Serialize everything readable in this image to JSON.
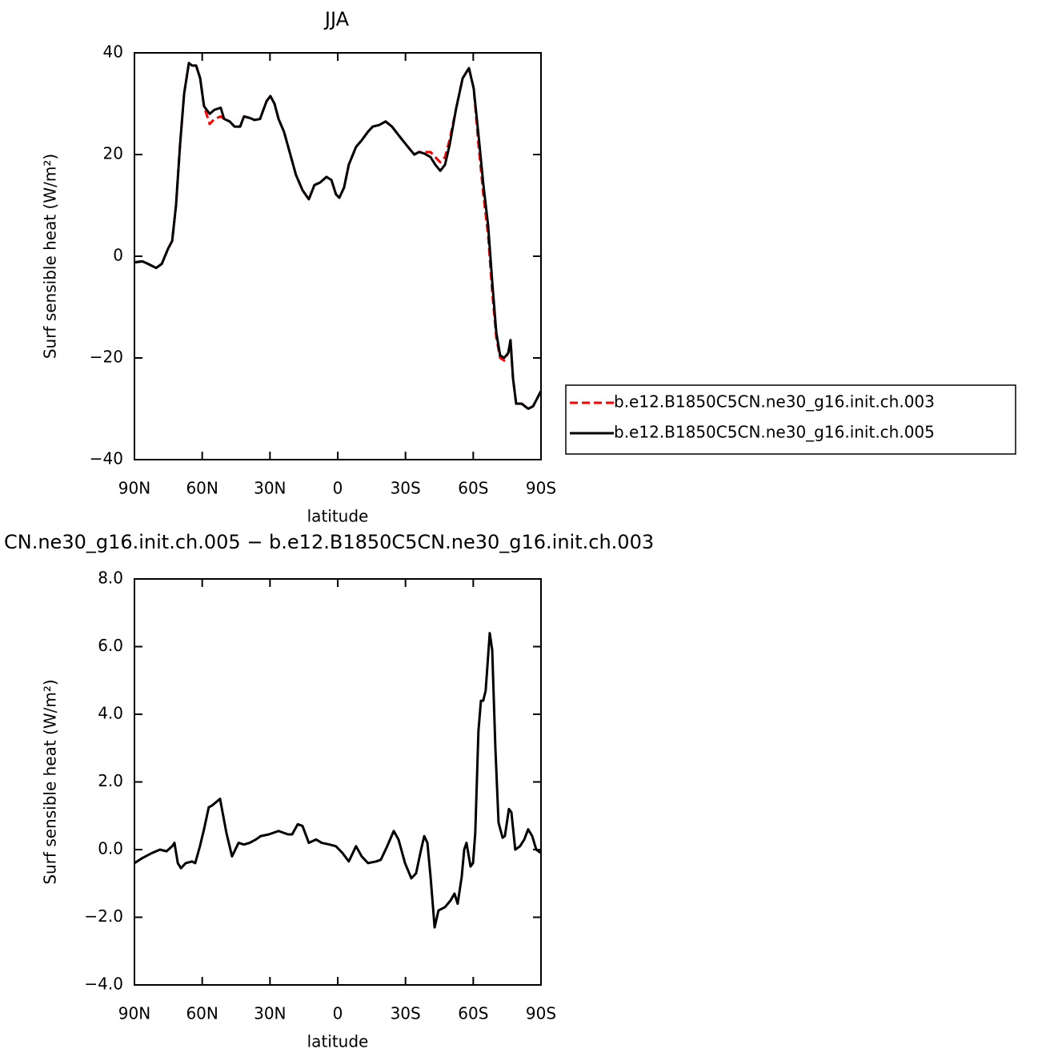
{
  "chart_data": [
    {
      "type": "line",
      "title": "JJA",
      "xlabel": "latitude",
      "ylabel": "Surf sensible heat (W/m²)",
      "xlim": [
        90,
        -90
      ],
      "xticks": [
        {
          "value": 90,
          "label": "90N"
        },
        {
          "value": 60,
          "label": "60N"
        },
        {
          "value": 30,
          "label": "30N"
        },
        0,
        {
          "value": -30,
          "label": "30S"
        },
        {
          "value": -60,
          "label": "60S"
        },
        {
          "value": -90,
          "label": "90S"
        }
      ],
      "ylim": [
        -40,
        40
      ],
      "yticks": [
        {
          "value": -40,
          "label": "−40"
        },
        {
          "value": -20,
          "label": "−20"
        },
        0,
        20,
        40
      ],
      "legend": "outside-right",
      "x": [
        90,
        86.5,
        84.0,
        80.4,
        77.9,
        75.1,
        73.3,
        71.6,
        69.8,
        68.0,
        65.9,
        64.5,
        62.7,
        60.9,
        59.2,
        56.7,
        54.6,
        51.8,
        50.3,
        47.8,
        45.7,
        43.2,
        41.5,
        39.0,
        36.8,
        34.4,
        31.5,
        29.8,
        28.0,
        26.2,
        23.8,
        21.3,
        18.5,
        15.6,
        12.8,
        10.3,
        7.8,
        5.0,
        2.8,
        0.8,
        -0.7,
        -2.8,
        -4.9,
        -8.1,
        -10.6,
        -13.4,
        -15.5,
        -18.3,
        -21.2,
        -24.0,
        -27.5,
        -31.1,
        -33.9,
        -36.0,
        -38.3,
        -41.1,
        -43.2,
        -45.4,
        -47.5,
        -49.6,
        -52.4,
        -55.3,
        -58.1,
        -60.2,
        -62.3,
        -64.5,
        -66.6,
        -68.4,
        -70.2,
        -71.9,
        -73.7,
        -75.5,
        -76.5,
        -77.6,
        -79.0,
        -81.5,
        -84.3,
        -86.5,
        -90
      ],
      "series": [
        {
          "name": "b.e12.B1850C5CN.ne30_g16.init.ch.003",
          "color": "#ff0000",
          "linestyle": "dashed",
          "values": [
            -1.2,
            -1.0,
            -1.5,
            -2.3,
            -1.5,
            1.5,
            3,
            10,
            22,
            32,
            38,
            37.5,
            37.5,
            35,
            29.5,
            26,
            27,
            27.5,
            27,
            26.5,
            25.5,
            25.5,
            27.5,
            27.2,
            26.8,
            27,
            30.5,
            31.5,
            30,
            27,
            24.5,
            20.5,
            16,
            13,
            11.2,
            14,
            14.5,
            15.6,
            15,
            12.2,
            11.5,
            13.5,
            18,
            21.5,
            22.8,
            24.5,
            25.5,
            25.8,
            26.5,
            25.5,
            23.5,
            21.5,
            20,
            20.5,
            20.5,
            20.5,
            19.5,
            18.5,
            19.5,
            23,
            29,
            35,
            37,
            33,
            22,
            12,
            4,
            -7,
            -16,
            -20,
            -20.5,
            -19,
            -16.5,
            -24,
            -29,
            -29,
            -30,
            -29.5,
            -26.5
          ]
        },
        {
          "name": "b.e12.B1850C5CN.ne30_g16.init.ch.005",
          "color": "#000000",
          "linestyle": "solid",
          "values": [
            -1.2,
            -1.0,
            -1.5,
            -2.3,
            -1.5,
            1.5,
            3,
            10,
            22,
            32,
            38,
            37.5,
            37.5,
            35,
            29.5,
            28,
            28.8,
            29.2,
            27,
            26.5,
            25.5,
            25.5,
            27.5,
            27.2,
            26.8,
            27,
            30.5,
            31.5,
            30,
            27,
            24.5,
            20.5,
            16,
            13,
            11.2,
            14,
            14.5,
            15.6,
            15,
            12.2,
            11.5,
            13.5,
            18,
            21.5,
            22.8,
            24.5,
            25.5,
            25.8,
            26.5,
            25.5,
            23.5,
            21.5,
            20,
            20.5,
            20.2,
            19.5,
            18,
            16.8,
            18,
            22,
            29,
            35,
            37,
            33,
            24,
            14,
            6,
            -5,
            -15,
            -19.5,
            -20,
            -19,
            -16.5,
            -24,
            -29,
            -29,
            -30,
            -29.5,
            -26.5
          ]
        }
      ]
    },
    {
      "type": "line",
      "title": "CN.ne30_g16.init.ch.005 − b.e12.B1850C5CN.ne30_g16.init.ch.003",
      "xlabel": "latitude",
      "ylabel": "Surf sensible heat (W/m²)",
      "xlim": [
        90,
        -90
      ],
      "xticks": [
        {
          "value": 90,
          "label": "90N"
        },
        {
          "value": 60,
          "label": "60N"
        },
        {
          "value": 30,
          "label": "30N"
        },
        0,
        {
          "value": -30,
          "label": "30S"
        },
        {
          "value": -60,
          "label": "60S"
        },
        {
          "value": -90,
          "label": "90S"
        }
      ],
      "ylim": [
        -4,
        8
      ],
      "yticks": [
        {
          "value": -4,
          "label": "−4.0"
        },
        {
          "value": -2,
          "label": "−2.0"
        },
        {
          "value": 0,
          "label": "0.0"
        },
        {
          "value": 2,
          "label": "2.0"
        },
        {
          "value": 4,
          "label": "4.0"
        },
        {
          "value": 6,
          "label": "6.0"
        },
        {
          "value": 8,
          "label": "8.0"
        }
      ],
      "x": [
        90,
        86.5,
        82.2,
        78.7,
        75.8,
        73.3,
        72.3,
        70.8,
        69.4,
        67.3,
        64.5,
        63.1,
        61.0,
        59.2,
        57.1,
        55.7,
        53.9,
        52.1,
        49.3,
        46.8,
        43.9,
        41.5,
        39.0,
        36.2,
        34.1,
        30.5,
        26.2,
        22.0,
        20.2,
        17.7,
        15.6,
        12.8,
        9.6,
        7.1,
        3.6,
        0.8,
        -2.1,
        -4.9,
        -8.1,
        -10.6,
        -13.4,
        -17.0,
        -19.1,
        -21.9,
        -24.8,
        -26.9,
        -29.8,
        -32.6,
        -34.7,
        -36.9,
        -38.3,
        -39.7,
        -41.1,
        -42.9,
        -44.6,
        -47.5,
        -50.0,
        -51.7,
        -53.1,
        -54.9,
        -56.0,
        -57.0,
        -58.8,
        -59.9,
        -60.9,
        -62.3,
        -63.4,
        -64.4,
        -65.5,
        -67.3,
        -68.4,
        -69.8,
        -71.2,
        -73.0,
        -74.0,
        -75.8,
        -76.9,
        -78.6,
        -80.7,
        -82.6,
        -84.3,
        -86.1,
        -87.9,
        -90
      ],
      "series": [
        {
          "color": "#000000",
          "linestyle": "solid",
          "values": [
            -0.4,
            -0.25,
            -0.1,
            0.0,
            -0.05,
            0.1,
            0.2,
            -0.4,
            -0.55,
            -0.4,
            -0.35,
            -0.4,
            0.1,
            0.6,
            1.25,
            1.3,
            1.4,
            1.5,
            0.5,
            -0.2,
            0.2,
            0.15,
            0.2,
            0.3,
            0.4,
            0.45,
            0.55,
            0.45,
            0.45,
            0.75,
            0.7,
            0.2,
            0.3,
            0.2,
            0.15,
            0.1,
            -0.1,
            -0.35,
            0.1,
            -0.2,
            -0.4,
            -0.35,
            -0.3,
            0.1,
            0.55,
            0.3,
            -0.4,
            -0.85,
            -0.7,
            0.0,
            0.4,
            0.2,
            -0.8,
            -2.3,
            -1.8,
            -1.7,
            -1.5,
            -1.3,
            -1.6,
            -0.8,
            0.0,
            0.2,
            -0.5,
            -0.4,
            0.5,
            3.5,
            4.4,
            4.4,
            4.7,
            6.4,
            5.9,
            3.0,
            0.8,
            0.35,
            0.4,
            1.2,
            1.1,
            0.0,
            0.1,
            0.3,
            0.6,
            0.4,
            0.0,
            -0.1
          ]
        }
      ]
    }
  ]
}
